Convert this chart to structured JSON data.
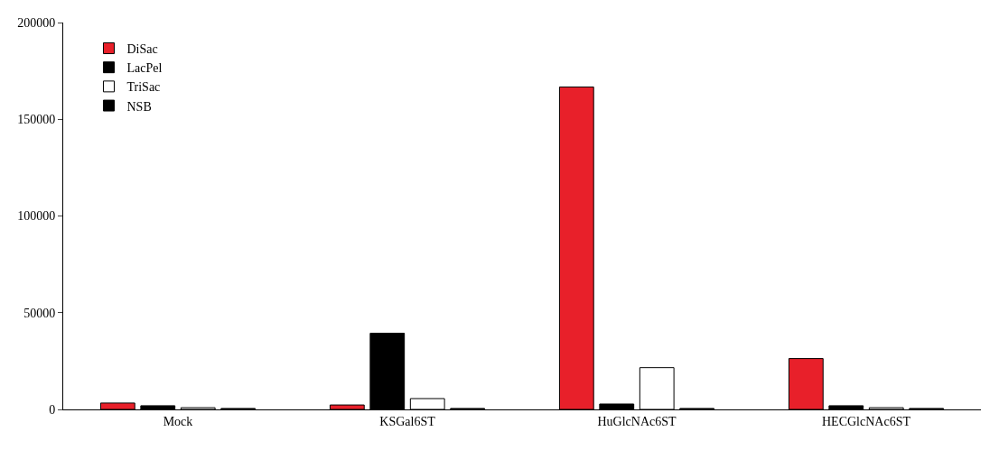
{
  "chart_data": {
    "type": "bar",
    "categories": [
      "Mock",
      "KSGal6ST",
      "HuGlcNAc6ST",
      "HECGlcNAc6ST"
    ],
    "series": [
      {
        "name": "DiSac",
        "color": "#e8202a",
        "values": [
          3300,
          2300,
          166700,
          26300
        ]
      },
      {
        "name": "LacPel",
        "color": "#000000",
        "values": [
          1900,
          39400,
          2800,
          1900
        ]
      },
      {
        "name": "TriSac",
        "color": "#ffffff",
        "values": [
          900,
          5600,
          21600,
          900
        ]
      },
      {
        "name": "NSB",
        "color": "#000000",
        "values": [
          500,
          500,
          500,
          500
        ]
      }
    ],
    "ylim": [
      0,
      200000
    ],
    "yticks": [
      0,
      50000,
      100000,
      150000,
      200000
    ],
    "legend": "top left"
  }
}
